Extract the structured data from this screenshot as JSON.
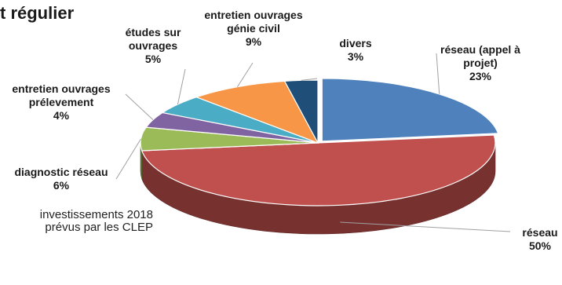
{
  "title_fragment": "t régulier",
  "caption": {
    "line1": "investissements 2018",
    "line2": "prévus par les CLEP"
  },
  "chart_data": {
    "type": "pie",
    "title": "",
    "slices": [
      {
        "label_lines": [
          "réseau (appel à",
          "projet)"
        ],
        "value": 23,
        "value_label": "23%",
        "color": "#4f81bd"
      },
      {
        "label_lines": [
          "réseau"
        ],
        "value": 50,
        "value_label": "50%",
        "color": "#c0504d"
      },
      {
        "label_lines": [
          "diagnostic réseau"
        ],
        "value": 6,
        "value_label": "6%",
        "color": "#9bbb59"
      },
      {
        "label_lines": [
          "entretien ouvrages",
          "prélevement"
        ],
        "value": 4,
        "value_label": "4%",
        "color": "#8064a2"
      },
      {
        "label_lines": [
          "études sur",
          "ouvrages"
        ],
        "value": 5,
        "value_label": "5%",
        "color": "#4bacc6"
      },
      {
        "label_lines": [
          "entretien ouvrages",
          "génie civil"
        ],
        "value": 9,
        "value_label": "9%",
        "color": "#f79646"
      },
      {
        "label_lines": [
          "divers"
        ],
        "value": 3,
        "value_label": "3%",
        "color": "#1f4e79"
      }
    ]
  }
}
